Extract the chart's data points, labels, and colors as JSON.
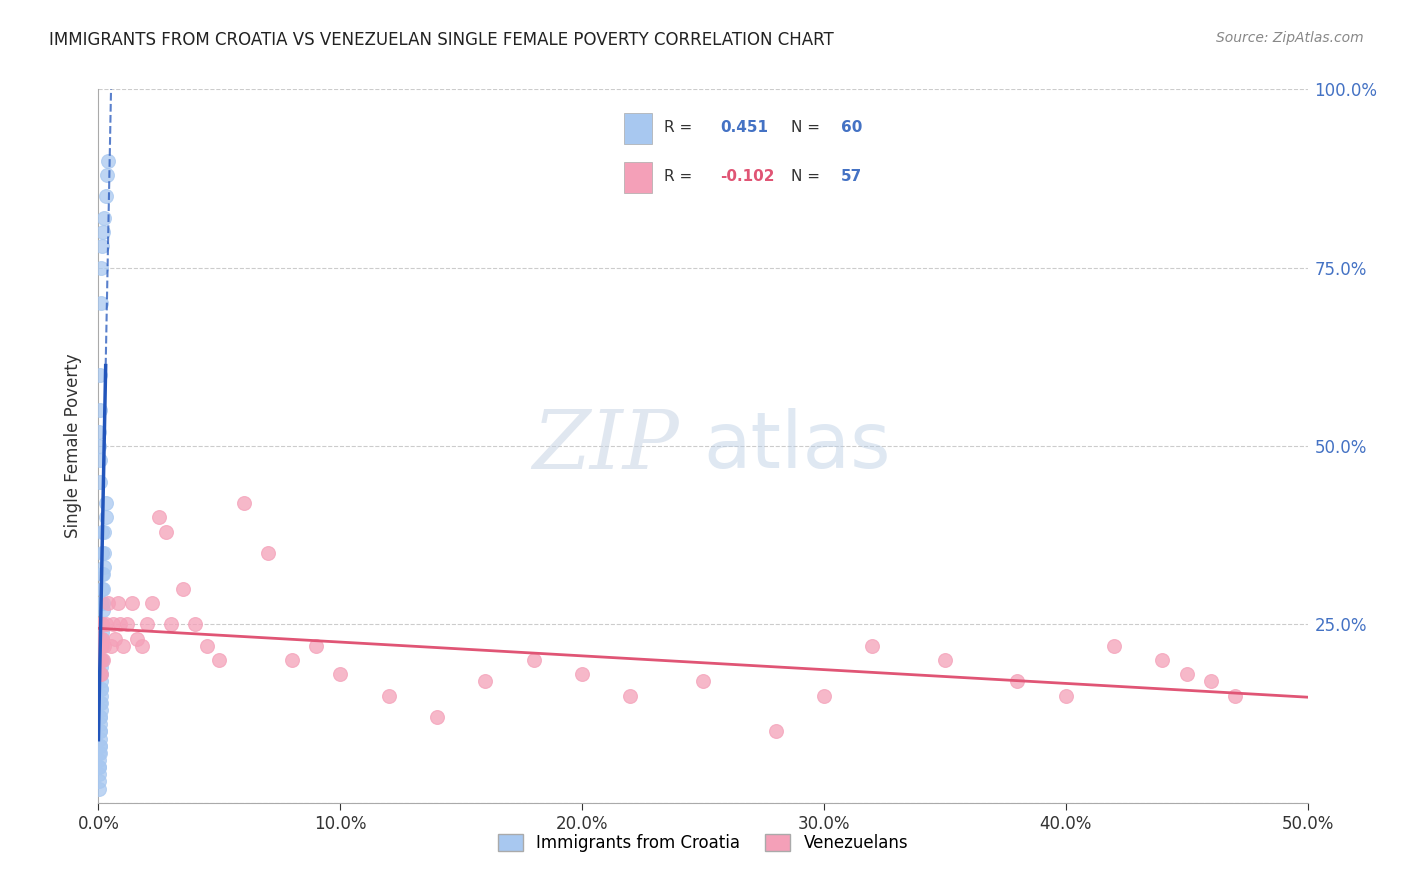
{
  "title": "IMMIGRANTS FROM CROATIA VS VENEZUELAN SINGLE FEMALE POVERTY CORRELATION CHART",
  "source": "Source: ZipAtlas.com",
  "ylabel": "Single Female Poverty",
  "legend_label1": "Immigrants from Croatia",
  "legend_label2": "Venezuelans",
  "r1": 0.451,
  "n1": 60,
  "r2": -0.102,
  "n2": 57,
  "color1": "#A8C8F0",
  "color2": "#F4A0B8",
  "trendline1_color": "#2255BB",
  "trendline2_color": "#E05575",
  "background_color": "#FFFFFF",
  "xlim": [
    0.0,
    0.5
  ],
  "ylim": [
    0.0,
    1.0
  ],
  "x_ticks": [
    0.0,
    0.1,
    0.2,
    0.3,
    0.4,
    0.5
  ],
  "x_tick_labels": [
    "0.0%",
    "10.0%",
    "20.0%",
    "30.0%",
    "40.0%",
    "50.0%"
  ],
  "y_ticks": [
    0.0,
    0.25,
    0.5,
    0.75,
    1.0
  ],
  "y_tick_labels_right": [
    "",
    "25.0%",
    "50.0%",
    "75.0%",
    "100.0%"
  ],
  "croatia_x": [
    0.0003,
    0.0003,
    0.0004,
    0.0004,
    0.0005,
    0.0005,
    0.0006,
    0.0006,
    0.0007,
    0.0008,
    0.0009,
    0.001,
    0.001,
    0.001,
    0.001,
    0.001,
    0.0012,
    0.0013,
    0.0014,
    0.0015,
    0.0015,
    0.0016,
    0.0017,
    0.0018,
    0.002,
    0.002,
    0.0022,
    0.0023,
    0.0025,
    0.003,
    0.003,
    0.0003,
    0.0004,
    0.0004,
    0.0005,
    0.0006,
    0.0007,
    0.0008,
    0.0009,
    0.001,
    0.001,
    0.0012,
    0.0013,
    0.0014,
    0.0015,
    0.0016,
    0.0003,
    0.0004,
    0.0005,
    0.0005,
    0.0006,
    0.0007,
    0.001,
    0.001,
    0.0015,
    0.002,
    0.0025,
    0.003,
    0.0035,
    0.004
  ],
  "croatia_y": [
    0.02,
    0.04,
    0.05,
    0.06,
    0.07,
    0.08,
    0.09,
    0.1,
    0.11,
    0.12,
    0.13,
    0.14,
    0.15,
    0.16,
    0.17,
    0.18,
    0.19,
    0.2,
    0.22,
    0.23,
    0.24,
    0.25,
    0.27,
    0.28,
    0.3,
    0.32,
    0.33,
    0.35,
    0.38,
    0.4,
    0.42,
    0.03,
    0.05,
    0.07,
    0.08,
    0.1,
    0.12,
    0.14,
    0.16,
    0.2,
    0.22,
    0.28,
    0.3,
    0.32,
    0.35,
    0.38,
    0.5,
    0.52,
    0.55,
    0.45,
    0.48,
    0.6,
    0.7,
    0.75,
    0.78,
    0.8,
    0.82,
    0.85,
    0.88,
    0.9
  ],
  "venezuela_x": [
    0.0003,
    0.0004,
    0.0005,
    0.0006,
    0.0007,
    0.0008,
    0.0009,
    0.001,
    0.0012,
    0.0014,
    0.0016,
    0.002,
    0.0025,
    0.003,
    0.004,
    0.005,
    0.006,
    0.007,
    0.008,
    0.009,
    0.01,
    0.012,
    0.014,
    0.016,
    0.018,
    0.02,
    0.022,
    0.025,
    0.028,
    0.03,
    0.035,
    0.04,
    0.045,
    0.05,
    0.06,
    0.07,
    0.08,
    0.09,
    0.1,
    0.12,
    0.14,
    0.16,
    0.18,
    0.2,
    0.22,
    0.25,
    0.28,
    0.3,
    0.32,
    0.35,
    0.38,
    0.4,
    0.42,
    0.44,
    0.45,
    0.46,
    0.47
  ],
  "venezuela_y": [
    0.22,
    0.2,
    0.18,
    0.25,
    0.23,
    0.22,
    0.2,
    0.18,
    0.22,
    0.25,
    0.23,
    0.2,
    0.22,
    0.25,
    0.28,
    0.22,
    0.25,
    0.23,
    0.28,
    0.25,
    0.22,
    0.25,
    0.28,
    0.23,
    0.22,
    0.25,
    0.28,
    0.4,
    0.38,
    0.25,
    0.3,
    0.25,
    0.22,
    0.2,
    0.42,
    0.35,
    0.2,
    0.22,
    0.18,
    0.15,
    0.12,
    0.17,
    0.2,
    0.18,
    0.15,
    0.17,
    0.1,
    0.15,
    0.22,
    0.2,
    0.17,
    0.15,
    0.22,
    0.2,
    0.18,
    0.17,
    0.15
  ]
}
